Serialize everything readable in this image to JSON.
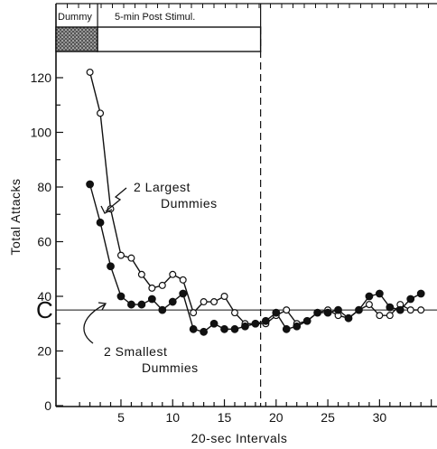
{
  "chart_data": {
    "type": "line",
    "xlabel": "20-sec Intervals",
    "ylabel": "Total Attacks",
    "xlim": [
      0,
      35
    ],
    "ylim": [
      0,
      130
    ],
    "x_ticks": [
      5,
      10,
      15,
      20,
      25,
      30
    ],
    "y_ticks": [
      0,
      20,
      40,
      60,
      80,
      100,
      120
    ],
    "stimulus_bar": {
      "dummy_label": "Dummy",
      "post_label": "5-min Post Stimul.",
      "dummy_interval": [
        0,
        3
      ],
      "post_interval": [
        3,
        18.5
      ]
    },
    "divider_x": 18.5,
    "baseline": {
      "label": "C",
      "value": 35
    },
    "series": [
      {
        "name": "2 Largest Dummies",
        "marker": "open-circle",
        "x": [
          2,
          3,
          4,
          5,
          6,
          7,
          8,
          9,
          10,
          11,
          12,
          13,
          14,
          15,
          16,
          17,
          18,
          19,
          20,
          21,
          22,
          23,
          24,
          25,
          26,
          27,
          28,
          29,
          30,
          31,
          32,
          33,
          34
        ],
        "values": [
          122,
          107,
          72,
          55,
          54,
          48,
          43,
          44,
          48,
          46,
          34,
          38,
          38,
          40,
          34,
          30,
          30,
          30,
          33,
          35,
          30,
          31,
          34,
          35,
          33,
          32,
          35,
          37,
          33,
          33,
          37,
          35,
          35
        ]
      },
      {
        "name": "2 Smallest Dummies",
        "marker": "filled-circle",
        "x": [
          2,
          3,
          4,
          5,
          6,
          7,
          8,
          9,
          10,
          11,
          12,
          13,
          14,
          15,
          16,
          17,
          18,
          19,
          20,
          21,
          22,
          23,
          24,
          25,
          26,
          27,
          28,
          29,
          30,
          31,
          32,
          33,
          34
        ],
        "values": [
          81,
          67,
          51,
          40,
          37,
          37,
          39,
          35,
          38,
          41,
          28,
          27,
          30,
          28,
          28,
          29,
          30,
          31,
          34,
          28,
          29,
          31,
          34,
          34,
          35,
          32,
          35,
          40,
          41,
          36,
          35,
          39,
          41
        ]
      }
    ],
    "annotations": [
      {
        "text_lines": [
          "2 Largest",
          "Dummies"
        ],
        "series": "2 Largest Dummies"
      },
      {
        "text_lines": [
          "2 Smallest",
          "Dummies"
        ],
        "series": "2 Smallest Dummies"
      }
    ]
  }
}
